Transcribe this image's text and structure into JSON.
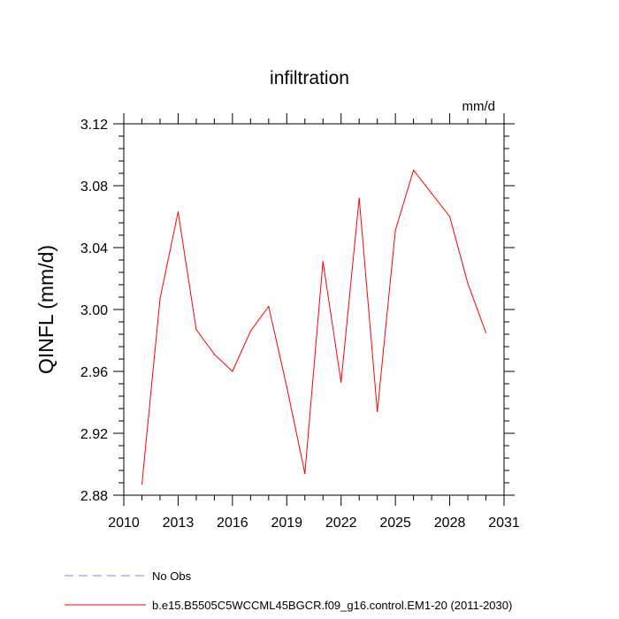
{
  "chart_data": {
    "type": "line",
    "title": "infiltration",
    "units_label": "mm/d",
    "xlabel": "",
    "ylabel": "QINFL  (mm/d)",
    "xlim": [
      2010,
      2031
    ],
    "ylim": [
      2.88,
      3.12
    ],
    "x_ticks": [
      2010,
      2013,
      2016,
      2019,
      2022,
      2025,
      2028,
      2031
    ],
    "x_minor_ticks": [
      2011,
      2012,
      2014,
      2015,
      2017,
      2018,
      2020,
      2021,
      2023,
      2024,
      2026,
      2027,
      2029,
      2030
    ],
    "y_ticks": [
      2.88,
      2.92,
      2.96,
      3.0,
      3.04,
      3.08,
      3.12
    ],
    "y_tick_labels": [
      "2.88",
      "2.92",
      "2.96",
      "3.00",
      "3.04",
      "3.08",
      "3.12"
    ],
    "y_minor_step": 0.008,
    "grid": false,
    "legend_placement": "bottom-left",
    "series": [
      {
        "name": "No Obs",
        "color": "#8080ff",
        "dash": true,
        "x": [],
        "y": []
      },
      {
        "name": "b.e15.B5505C5WCCML45BGCR.f09_g16.control.EM1-20 (2011-2030)",
        "color": "#ff0000",
        "dash": false,
        "x": [
          2011,
          2012,
          2013,
          2014,
          2015,
          2016,
          2017,
          2018,
          2019,
          2020,
          2021,
          2022,
          2023,
          2024,
          2025,
          2026,
          2027,
          2028,
          2029,
          2030
        ],
        "y": [
          2.887,
          3.007,
          3.063,
          2.987,
          2.971,
          2.96,
          2.986,
          3.002,
          2.95,
          2.894,
          3.031,
          2.953,
          3.072,
          2.934,
          3.051,
          3.09,
          3.075,
          3.06,
          3.017,
          2.985
        ]
      }
    ]
  }
}
